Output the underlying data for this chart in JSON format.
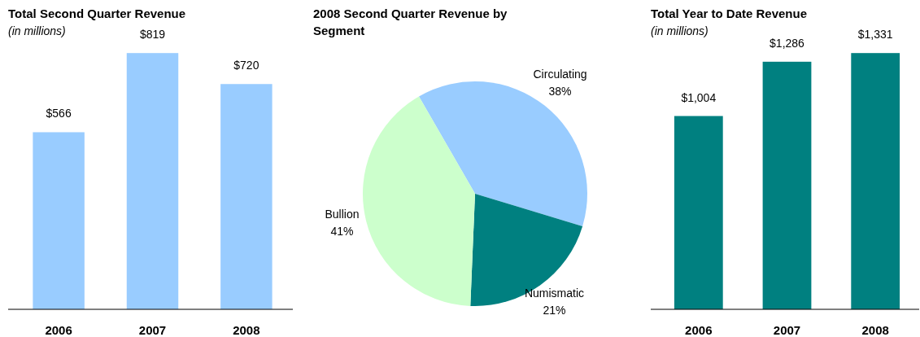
{
  "chart_data": [
    {
      "type": "bar",
      "title": "Total Second Quarter Revenue",
      "subtitle": "(in millions)",
      "categories": [
        "2006",
        "2007",
        "2008"
      ],
      "values": [
        566,
        819,
        720
      ],
      "color": "#99ccff",
      "value_labels": [
        "$566",
        "$819",
        "$720"
      ]
    },
    {
      "type": "pie",
      "title": "2008 Second Quarter Revenue by Segment",
      "categories": [
        "Circulating",
        "Numismatic",
        "Bullion"
      ],
      "values": [
        38,
        21,
        41
      ],
      "colors": [
        "#99ccff",
        "#008080",
        "#ccffcc"
      ],
      "value_labels": [
        "38%",
        "21%",
        "41%"
      ]
    },
    {
      "type": "bar",
      "title": "Total Year to Date Revenue",
      "subtitle": "(in millions)",
      "categories": [
        "2006",
        "2007",
        "2008"
      ],
      "values": [
        1004,
        1286,
        1331
      ],
      "color": "#008080",
      "value_labels": [
        "$1,004",
        "$1,286",
        "$1,331"
      ]
    }
  ]
}
